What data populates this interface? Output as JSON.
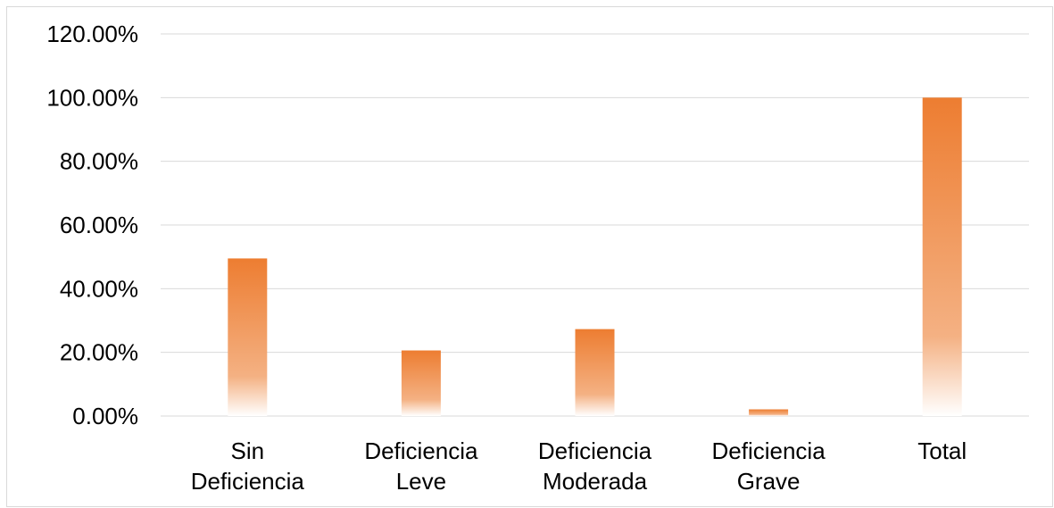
{
  "chart_data": {
    "type": "bar",
    "title": "",
    "xlabel": "",
    "ylabel": "",
    "categories": [
      [
        "Sin",
        "Deficiencia"
      ],
      [
        "Deficiencia",
        "Leve"
      ],
      [
        "Deficiencia",
        "Moderada"
      ],
      [
        "Deficiencia",
        "Grave"
      ],
      [
        "Total"
      ]
    ],
    "values": [
      49.5,
      20.6,
      27.3,
      2.1,
      100.0
    ],
    "ylim": [
      0,
      120
    ],
    "yticks": [
      0,
      20,
      40,
      60,
      80,
      100,
      120
    ],
    "ytick_labels": [
      "0.00%",
      "20.00%",
      "40.00%",
      "60.00%",
      "80.00%",
      "100.00%",
      "120.00%"
    ],
    "grid": true,
    "legend": "none",
    "colors": {
      "bar_top": "#ed7d31",
      "bar_mid": "#f4b183",
      "bar_bottom": "#ffffff",
      "grid": "#d9d9d9",
      "axis": "#d9d9d9",
      "text": "#000000"
    }
  }
}
